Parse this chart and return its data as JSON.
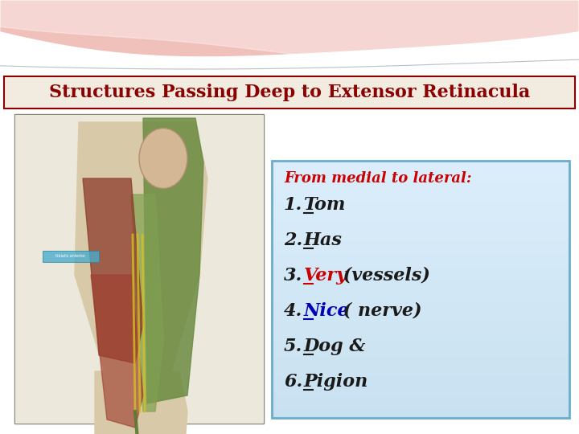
{
  "title": "Structures Passing Deep to Extensor Retinacula",
  "title_color": "#8B0000",
  "title_bg_color": "#F2EBE0",
  "title_border_color": "#8B0000",
  "text_box_bg_top": "#E8F6FF",
  "text_box_bg_bot": "#C8E8F8",
  "text_box_border": "#6AACCC",
  "subtitle": "From medial to lateral:",
  "subtitle_color": "#CC0000",
  "item_num_color": "#1a1a1a",
  "items": [
    {
      "num": "1.",
      "word": "Tom",
      "word_color": "#1a1a1a",
      "rest": "",
      "rest_color": "#1a1a1a"
    },
    {
      "num": "2.",
      "word": "Has",
      "word_color": "#1a1a1a",
      "rest": "",
      "rest_color": "#1a1a1a"
    },
    {
      "num": "3.",
      "word": "Very",
      "word_color": "#CC0000",
      "rest": " (vessels)",
      "rest_color": "#1a1a1a"
    },
    {
      "num": "4.",
      "word": "Nice",
      "word_color": "#0000BB",
      "rest": " ( nerve)",
      "rest_color": "#1a1a1a"
    },
    {
      "num": "5.",
      "word": "Dog &",
      "word_color": "#1a1a1a",
      "rest": "",
      "rest_color": "#1a1a1a"
    },
    {
      "num": "6.",
      "word": "Pigion",
      "word_color": "#1a1a1a",
      "rest": "",
      "rest_color": "#1a1a1a"
    }
  ],
  "header_color1": "#E07060",
  "header_color2": "#D4806A",
  "bg_color": "#F0F0F0",
  "figsize": [
    7.2,
    5.4
  ],
  "dpi": 100
}
